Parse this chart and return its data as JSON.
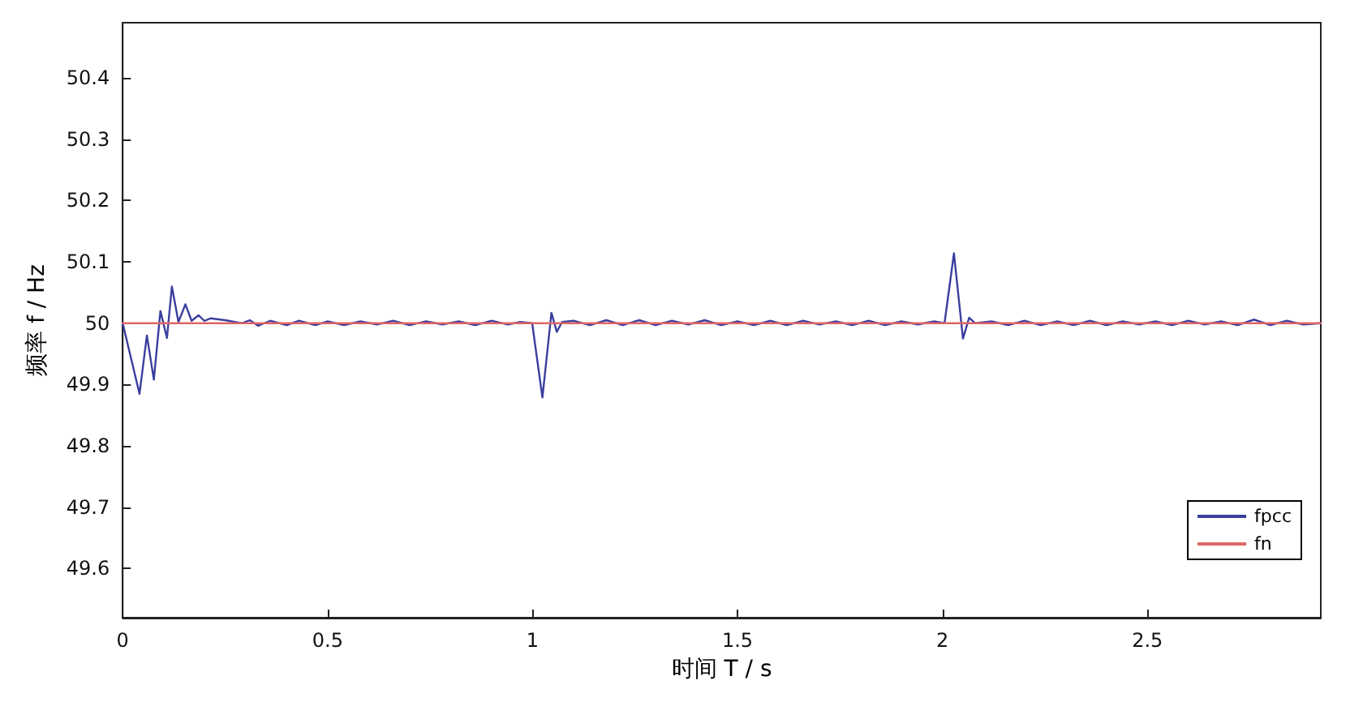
{
  "chart_data": {
    "type": "line",
    "xlabel": "时间 T / s",
    "ylabel": "频率 f / Hz",
    "xlim": [
      0,
      2.923
    ],
    "xticks": [
      0,
      0.5,
      1,
      1.5,
      2,
      2.5
    ],
    "ylim": [
      49.52,
      50.49
    ],
    "yticks": [
      49.6,
      49.7,
      49.8,
      49.9,
      50,
      50.1,
      50.2,
      50.3,
      50.4
    ],
    "grid": false,
    "legend": "bottom right",
    "marker": "none",
    "line_style": "solid",
    "series": [
      {
        "name": "fpcc",
        "color": "#3a3f9e",
        "x": [
          0,
          0.041,
          0.059,
          0.076,
          0.092,
          0.108,
          0.12,
          0.136,
          0.153,
          0.168,
          0.185,
          0.199,
          0.215,
          0.25,
          0.29,
          0.31,
          0.33,
          0.36,
          0.4,
          0.43,
          0.47,
          0.5,
          0.54,
          0.58,
          0.62,
          0.66,
          0.7,
          0.74,
          0.78,
          0.82,
          0.86,
          0.9,
          0.94,
          0.97,
          0.999,
          1.024,
          1.046,
          1.059,
          1.072,
          1.1,
          1.14,
          1.18,
          1.22,
          1.26,
          1.3,
          1.34,
          1.38,
          1.42,
          1.46,
          1.5,
          1.54,
          1.58,
          1.62,
          1.66,
          1.7,
          1.74,
          1.78,
          1.82,
          1.86,
          1.9,
          1.94,
          1.98,
          2.005,
          2.028,
          2.05,
          2.065,
          2.08,
          2.12,
          2.16,
          2.2,
          2.24,
          2.28,
          2.32,
          2.36,
          2.4,
          2.44,
          2.48,
          2.52,
          2.56,
          2.6,
          2.64,
          2.68,
          2.72,
          2.76,
          2.8,
          2.84,
          2.88,
          2.923
        ],
        "values": [
          50,
          49.885,
          49.98,
          49.908,
          50.02,
          49.976,
          50.06,
          50.002,
          50.031,
          50.004,
          50.013,
          50.004,
          50.008,
          50.005,
          50,
          50.005,
          49.996,
          50.004,
          49.997,
          50.004,
          49.997,
          50.003,
          49.997,
          50.003,
          49.998,
          50.004,
          49.997,
          50.003,
          49.998,
          50.003,
          49.997,
          50.004,
          49.998,
          50.002,
          50,
          49.879,
          50.017,
          49.986,
          50.002,
          50.004,
          49.997,
          50.005,
          49.997,
          50.005,
          49.997,
          50.004,
          49.998,
          50.005,
          49.997,
          50.003,
          49.997,
          50.004,
          49.997,
          50.004,
          49.998,
          50.003,
          49.997,
          50.004,
          49.997,
          50.003,
          49.998,
          50.003,
          50,
          50.114,
          49.975,
          50.009,
          50,
          50.003,
          49.997,
          50.004,
          49.997,
          50.003,
          49.997,
          50.004,
          49.997,
          50.003,
          49.998,
          50.003,
          49.997,
          50.004,
          49.998,
          50.003,
          49.997,
          50.006,
          49.997,
          50.004,
          49.998,
          50
        ]
      },
      {
        "name": "fn",
        "color": "#e06666",
        "x": [
          0,
          2.923
        ],
        "values": [
          50,
          50
        ]
      }
    ]
  }
}
